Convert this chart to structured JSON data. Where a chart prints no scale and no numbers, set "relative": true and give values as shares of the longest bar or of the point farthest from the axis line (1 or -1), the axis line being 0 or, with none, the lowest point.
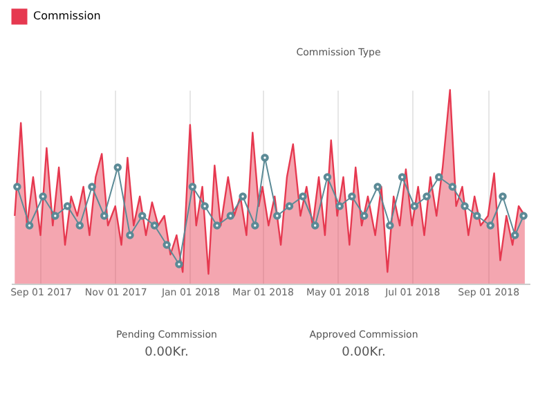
{
  "chart_data": {
    "type": "area",
    "relative": true,
    "x": [
      "2017-08-11",
      "2017-08-16",
      "2017-08-21",
      "2017-08-26",
      "2017-09-01",
      "2017-09-06",
      "2017-09-11",
      "2017-09-16",
      "2017-09-21",
      "2017-09-26",
      "2017-10-01",
      "2017-10-06",
      "2017-10-11",
      "2017-10-16",
      "2017-10-21",
      "2017-10-26",
      "2017-11-01",
      "2017-11-06",
      "2017-11-11",
      "2017-11-16",
      "2017-11-21",
      "2017-11-26",
      "2017-12-01",
      "2017-12-06",
      "2017-12-11",
      "2017-12-16",
      "2017-12-21",
      "2017-12-26",
      "2018-01-01",
      "2018-01-06",
      "2018-01-11",
      "2018-01-16",
      "2018-01-21",
      "2018-01-26",
      "2018-02-01",
      "2018-02-06",
      "2018-02-11",
      "2018-02-16",
      "2018-02-21",
      "2018-02-26",
      "2018-03-01",
      "2018-03-06",
      "2018-03-11",
      "2018-03-16",
      "2018-03-21",
      "2018-03-26",
      "2018-04-01",
      "2018-04-06",
      "2018-04-11",
      "2018-04-16",
      "2018-04-21",
      "2018-04-26",
      "2018-05-01",
      "2018-05-06",
      "2018-05-11",
      "2018-05-16",
      "2018-05-21",
      "2018-05-26",
      "2018-06-01",
      "2018-06-06",
      "2018-06-11",
      "2018-06-16",
      "2018-06-21",
      "2018-06-26",
      "2018-07-01",
      "2018-07-06",
      "2018-07-11",
      "2018-07-16",
      "2018-07-21",
      "2018-07-26",
      "2018-08-01",
      "2018-08-06",
      "2018-08-11",
      "2018-08-16",
      "2018-08-21",
      "2018-08-26",
      "2018-09-01",
      "2018-09-06",
      "2018-09-11",
      "2018-09-16",
      "2018-09-21",
      "2018-09-26",
      "2018-10-01"
    ],
    "xlim": [
      "2017-08-08",
      "2018-10-05"
    ],
    "xticks": [
      {
        "value": "2017-09-01",
        "label": "Sep 01 2017"
      },
      {
        "value": "2017-11-01",
        "label": "Nov 01 2017"
      },
      {
        "value": "2018-01-01",
        "label": "Jan 01 2018"
      },
      {
        "value": "2018-03-01",
        "label": "Mar 01 2018"
      },
      {
        "value": "2018-05-01",
        "label": "May 01 2018"
      },
      {
        "value": "2018-07-01",
        "label": "Jul 01 2018"
      },
      {
        "value": "2018-09-01",
        "label": "Sep 01 2018"
      }
    ],
    "grid": "x",
    "legend": "top left",
    "series": [
      {
        "name": "Commission",
        "color": "#e63950",
        "values": [
          0.35,
          0.83,
          0.3,
          0.55,
          0.25,
          0.7,
          0.3,
          0.6,
          0.2,
          0.45,
          0.35,
          0.5,
          0.25,
          0.55,
          0.67,
          0.3,
          0.4,
          0.2,
          0.65,
          0.3,
          0.45,
          0.25,
          0.42,
          0.3,
          0.35,
          0.15,
          0.25,
          0.06,
          0.82,
          0.3,
          0.5,
          0.05,
          0.61,
          0.3,
          0.55,
          0.35,
          0.45,
          0.25,
          0.78,
          0.4,
          0.5,
          0.3,
          0.45,
          0.2,
          0.55,
          0.72,
          0.35,
          0.5,
          0.3,
          0.55,
          0.25,
          0.74,
          0.35,
          0.55,
          0.2,
          0.6,
          0.3,
          0.45,
          0.25,
          0.5,
          0.06,
          0.45,
          0.3,
          0.59,
          0.3,
          0.5,
          0.25,
          0.55,
          0.35,
          0.6,
          1.0,
          0.4,
          0.5,
          0.25,
          0.45,
          0.3,
          0.35,
          0.57,
          0.12,
          0.35,
          0.2,
          0.4,
          0.35
        ]
      },
      {
        "type": "line",
        "color": "#5b8a96",
        "marker": "circle",
        "x": [
          "2017-08-13",
          "2017-08-23",
          "2017-09-03",
          "2017-09-13",
          "2017-09-23",
          "2017-10-03",
          "2017-10-13",
          "2017-10-23",
          "2017-11-03",
          "2017-11-13",
          "2017-11-23",
          "2017-12-03",
          "2017-12-13",
          "2017-12-23",
          "2018-01-03",
          "2018-01-13",
          "2018-01-23",
          "2018-02-03",
          "2018-02-13",
          "2018-02-23",
          "2018-03-03",
          "2018-03-13",
          "2018-03-23",
          "2018-04-03",
          "2018-04-13",
          "2018-04-23",
          "2018-05-03",
          "2018-05-13",
          "2018-05-23",
          "2018-06-03",
          "2018-06-13",
          "2018-06-23",
          "2018-07-03",
          "2018-07-13",
          "2018-07-23",
          "2018-08-03",
          "2018-08-13",
          "2018-08-23",
          "2018-09-03",
          "2018-09-13",
          "2018-09-23",
          "2018-09-30"
        ],
        "values": [
          0.5,
          0.3,
          0.45,
          0.35,
          0.4,
          0.3,
          0.5,
          0.35,
          0.6,
          0.25,
          0.35,
          0.3,
          0.2,
          0.1,
          0.5,
          0.4,
          0.3,
          0.35,
          0.45,
          0.3,
          0.65,
          0.35,
          0.4,
          0.45,
          0.3,
          0.55,
          0.4,
          0.45,
          0.35,
          0.5,
          0.3,
          0.55,
          0.4,
          0.45,
          0.55,
          0.5,
          0.4,
          0.35,
          0.3,
          0.45,
          0.25,
          0.35
        ]
      }
    ],
    "annotations": [
      "Commission Type",
      "Pending Commission",
      "0.00Kr.",
      "Approved Commission",
      "0.00Kr."
    ]
  }
}
